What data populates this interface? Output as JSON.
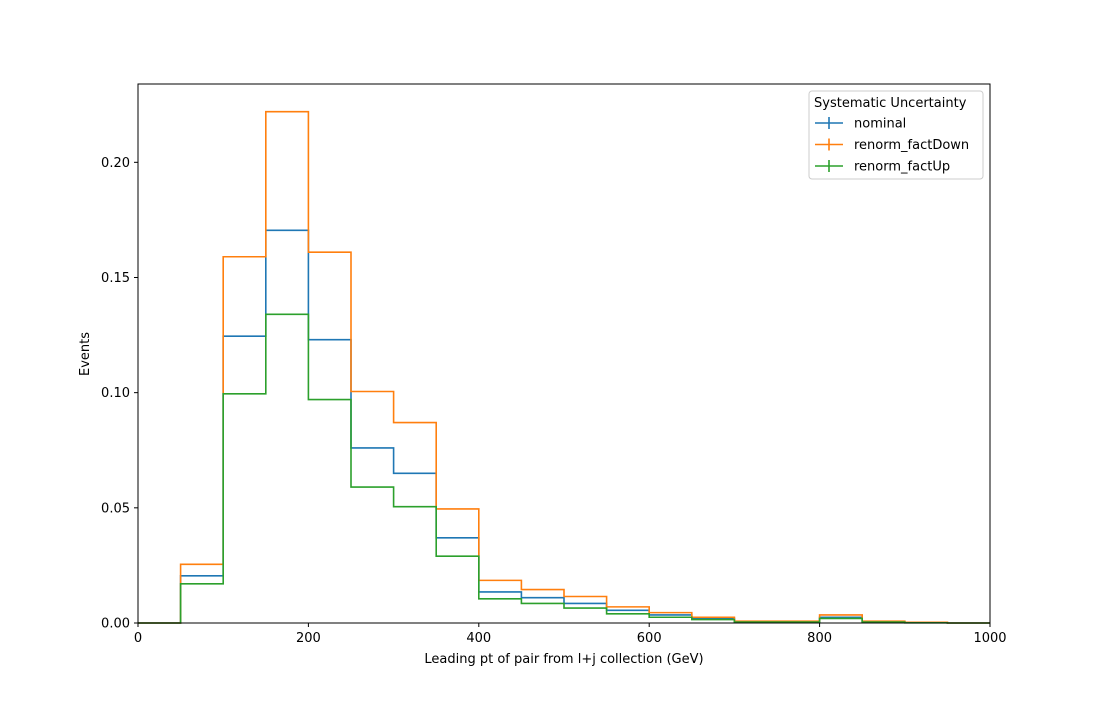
{
  "chart_data": {
    "type": "step-histogram",
    "title": "",
    "xlabel": "Leading pt of pair from l+j collection (GeV)",
    "ylabel": "Events",
    "xlim": [
      0,
      1000
    ],
    "ylim": [
      0,
      0.234
    ],
    "xticks": [
      0,
      200,
      400,
      600,
      800,
      1000
    ],
    "xtick_labels": [
      "0",
      "200",
      "400",
      "600",
      "800",
      "1000"
    ],
    "yticks": [
      0.0,
      0.05,
      0.1,
      0.15,
      0.2
    ],
    "ytick_labels": [
      "0.00",
      "0.05",
      "0.10",
      "0.15",
      "0.20"
    ],
    "grid": false,
    "legend": {
      "title": "Systematic Uncertainty",
      "placement": "top-right"
    },
    "bin_edges": [
      0,
      50,
      100,
      150,
      200,
      250,
      300,
      350,
      400,
      450,
      500,
      550,
      600,
      650,
      700,
      750,
      800,
      850,
      900,
      950,
      1000
    ],
    "series": [
      {
        "name": "nominal",
        "color": "#1f77b4",
        "values": [
          0.0,
          0.0205,
          0.1245,
          0.1705,
          0.123,
          0.076,
          0.065,
          0.037,
          0.0135,
          0.011,
          0.0085,
          0.0055,
          0.0035,
          0.002,
          0.0005,
          0.0005,
          0.0025,
          0.0005,
          0.0002,
          0.0
        ]
      },
      {
        "name": "renorm_factDown",
        "color": "#ff7f0e",
        "values": [
          0.0,
          0.0255,
          0.159,
          0.222,
          0.161,
          0.1005,
          0.087,
          0.0495,
          0.0185,
          0.0145,
          0.0115,
          0.007,
          0.0045,
          0.0025,
          0.0008,
          0.0008,
          0.0035,
          0.0008,
          0.0003,
          0.0
        ]
      },
      {
        "name": "renorm_factUp",
        "color": "#2ca02c",
        "values": [
          0.0,
          0.017,
          0.0995,
          0.134,
          0.097,
          0.059,
          0.0505,
          0.029,
          0.0105,
          0.0085,
          0.0065,
          0.004,
          0.0025,
          0.0015,
          0.0004,
          0.0004,
          0.002,
          0.0004,
          0.0001,
          0.0
        ]
      }
    ]
  }
}
